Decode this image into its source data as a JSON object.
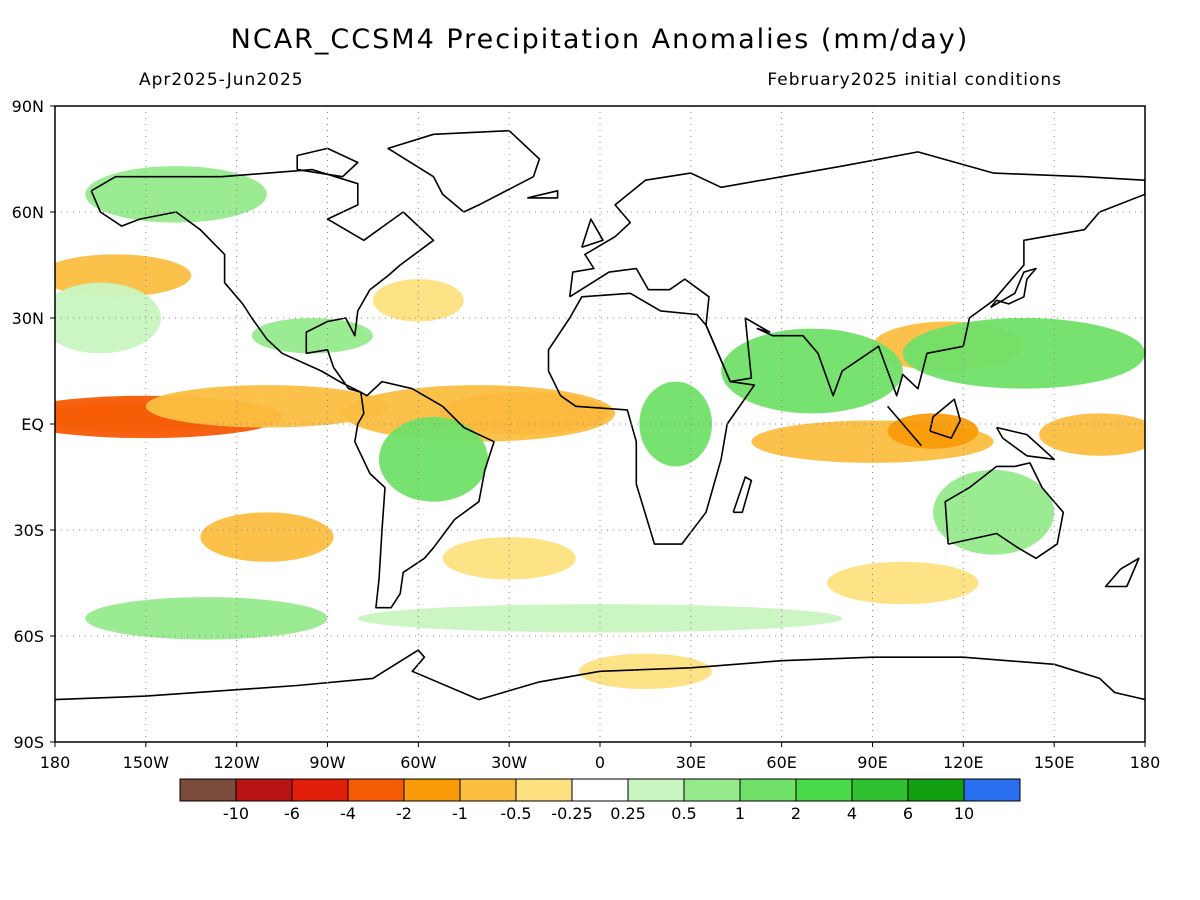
{
  "title": "NCAR_CCSM4 Precipitation Anomalies (mm/day)",
  "subtitle_left": "Apr2025-Jun2025",
  "subtitle_right": "February2025 initial conditions",
  "map": {
    "lat_labels": [
      "90N",
      "60N",
      "30N",
      "EQ",
      "30S",
      "60S",
      "90S"
    ],
    "lon_labels": [
      "180",
      "150W",
      "120W",
      "90W",
      "60W",
      "30W",
      "0",
      "30E",
      "60E",
      "90E",
      "120E",
      "150E",
      "180"
    ],
    "grid": true
  },
  "colorbar": {
    "colors": [
      "#7a4a3a",
      "#b81414",
      "#e01e0a",
      "#f55a05",
      "#fa9b0a",
      "#fbbe41",
      "#fde080",
      "#ffffff",
      "#c8f5c0",
      "#96ea8c",
      "#70e068",
      "#48d848",
      "#30c030",
      "#12a012",
      "#2a6ff0"
    ],
    "labels": [
      "-10",
      "-6",
      "-4",
      "-2",
      "-1",
      "-0.5",
      "-0.25",
      "0.25",
      "0.5",
      "1",
      "2",
      "4",
      "6",
      "10"
    ]
  },
  "anomaly_fields": [
    {
      "level": 4,
      "cx": -155,
      "cy": 2,
      "rx": 36,
      "ry": 4
    },
    {
      "level": 3,
      "cx": -150,
      "cy": 2,
      "rx": 45,
      "ry": 6
    },
    {
      "level": 4,
      "cx": -20,
      "cy": 5,
      "rx": 15,
      "ry": 4
    },
    {
      "level": 3,
      "cx": -25,
      "cy": 3,
      "rx": 28,
      "ry": 6
    },
    {
      "level": 5,
      "cx": -40,
      "cy": 3,
      "rx": 45,
      "ry": 8
    },
    {
      "level": 5,
      "cx": -110,
      "cy": 5,
      "rx": 40,
      "ry": 6
    },
    {
      "level": 5,
      "cx": 90,
      "cy": -5,
      "rx": 40,
      "ry": 6
    },
    {
      "level": 4,
      "cx": 110,
      "cy": -2,
      "rx": 15,
      "ry": 5
    },
    {
      "level": 5,
      "cx": 165,
      "cy": -3,
      "rx": 20,
      "ry": 6
    },
    {
      "level": 5,
      "cx": -110,
      "cy": -32,
      "rx": 22,
      "ry": 7
    },
    {
      "level": 6,
      "cx": -30,
      "cy": -38,
      "rx": 22,
      "ry": 6
    },
    {
      "level": 6,
      "cx": 100,
      "cy": -45,
      "rx": 25,
      "ry": 6
    },
    {
      "level": 6,
      "cx": 15,
      "cy": -70,
      "rx": 22,
      "ry": 5
    },
    {
      "level": 6,
      "cx": -60,
      "cy": 35,
      "rx": 15,
      "ry": 6
    },
    {
      "level": 5,
      "cx": 115,
      "cy": 22,
      "rx": 25,
      "ry": 7
    },
    {
      "level": 5,
      "cx": -160,
      "cy": 42,
      "rx": 25,
      "ry": 6
    },
    {
      "level": 10,
      "cx": 70,
      "cy": 15,
      "rx": 30,
      "ry": 12
    },
    {
      "level": 10,
      "cx": 140,
      "cy": 20,
      "rx": 40,
      "ry": 10
    },
    {
      "level": 10,
      "cx": -55,
      "cy": -10,
      "rx": 18,
      "ry": 12
    },
    {
      "level": 10,
      "cx": 25,
      "cy": 0,
      "rx": 12,
      "ry": 12
    },
    {
      "level": 9,
      "cx": 130,
      "cy": -25,
      "rx": 20,
      "ry": 12
    },
    {
      "level": 9,
      "cx": -140,
      "cy": 65,
      "rx": 30,
      "ry": 8
    },
    {
      "level": 9,
      "cx": -130,
      "cy": -55,
      "rx": 40,
      "ry": 6
    },
    {
      "level": 8,
      "cx": 0,
      "cy": -55,
      "rx": 80,
      "ry": 4
    },
    {
      "level": 8,
      "cx": -165,
      "cy": 30,
      "rx": 20,
      "ry": 10
    },
    {
      "level": 9,
      "cx": -95,
      "cy": 25,
      "rx": 20,
      "ry": 5
    }
  ]
}
